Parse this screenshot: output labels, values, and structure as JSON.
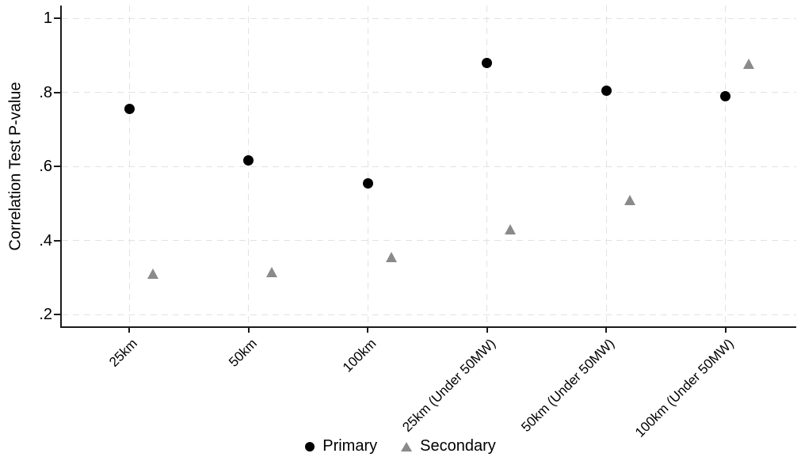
{
  "figure": {
    "background": "#ffffff",
    "axis_color": "#1a1a1a",
    "grid_color": "#e2e2e2",
    "text_color": "#000000"
  },
  "chart_data": {
    "type": "scatter",
    "title": "",
    "xlabel": "",
    "ylabel": "Correlation Test P-value",
    "ylim": [
      0.2,
      1
    ],
    "grid": true,
    "legend_position": "bottom",
    "categories": [
      "25km",
      "50km",
      "100km",
      "25km (Under 50MW)",
      "50km (Under 50MW)",
      "100km (Under 50MW)"
    ],
    "y_ticks": [
      {
        "label": "1",
        "value": 1.0
      },
      {
        "label": ".8",
        "value": 0.8
      },
      {
        "label": ".6",
        "value": 0.6
      },
      {
        "label": ".4",
        "value": 0.4
      },
      {
        "label": ".2",
        "value": 0.2
      }
    ],
    "series": [
      {
        "name": "Primary",
        "marker": "circle",
        "color": "#000000",
        "values": [
          0.755,
          0.615,
          0.553,
          0.88,
          0.805,
          0.79
        ]
      },
      {
        "name": "Secondary",
        "marker": "triangle",
        "color": "#8a8a8a",
        "values": [
          0.31,
          0.315,
          0.355,
          0.43,
          0.51,
          0.877
        ]
      }
    ]
  }
}
